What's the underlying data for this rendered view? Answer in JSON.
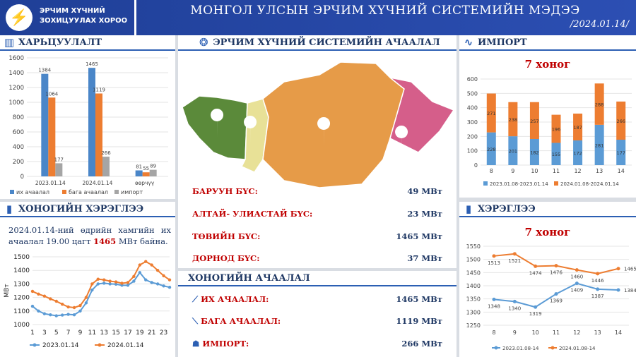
{
  "header": {
    "org_line1": "ЭРЧИМ ХҮЧНИЙ",
    "org_line2": "ЗОХИЦУУЛАХ ХОРОО",
    "title": "МОНГОЛ УЛСЫН ЭРЧИМ ХҮЧНИЙ СИСТЕМИЙН МЭДЭЭ",
    "date": "/2024.01.14/"
  },
  "compare": {
    "title": "ХАРЬЦУУЛАЛТ",
    "chart_data": {
      "type": "bar",
      "categories": [
        "2023.01.14",
        "2024.01.14",
        "өөрчүү"
      ],
      "series": [
        {
          "name": "их ачаалал",
          "color": "#4a86c8",
          "values": [
            1384,
            1465,
            81
          ]
        },
        {
          "name": "бага ачаалал",
          "color": "#ed7d31",
          "values": [
            1064,
            1119,
            55
          ]
        },
        {
          "name": "импорт",
          "color": "#a5a5a5",
          "values": [
            177,
            266,
            89
          ]
        }
      ],
      "ylim": [
        0,
        1600
      ],
      "yticks": [
        0,
        200,
        400,
        600,
        800,
        1000,
        1200,
        1400,
        1600
      ]
    }
  },
  "daily": {
    "title": "ХОНОГИЙН ХЭРЭГЛЭЭ",
    "text_before": "2024.01.14-ний өдрийн хамгийн их ачаалал 19.00 цагт ",
    "peak": "1465",
    "text_after": " МВт байна.",
    "chart_data": {
      "type": "line",
      "ylabel": "МВт",
      "x": [
        1,
        2,
        3,
        4,
        5,
        6,
        7,
        8,
        9,
        10,
        11,
        12,
        13,
        14,
        15,
        16,
        17,
        18,
        19,
        20,
        21,
        22,
        23,
        24
      ],
      "xticks": [
        1,
        3,
        5,
        7,
        9,
        11,
        13,
        15,
        17,
        19,
        21,
        23
      ],
      "ylim": [
        1000,
        1500
      ],
      "yticks": [
        1000,
        1100,
        1200,
        1300,
        1400,
        1500
      ],
      "series": [
        {
          "name": "2023.01.14",
          "color": "#5b9bd5",
          "values": [
            1135,
            1100,
            1080,
            1072,
            1065,
            1070,
            1075,
            1072,
            1100,
            1160,
            1255,
            1300,
            1305,
            1300,
            1298,
            1290,
            1290,
            1320,
            1384,
            1330,
            1310,
            1300,
            1285,
            1275
          ]
        },
        {
          "name": "2024.01.14",
          "color": "#ed7d31",
          "values": [
            1245,
            1225,
            1210,
            1190,
            1172,
            1150,
            1130,
            1125,
            1140,
            1200,
            1300,
            1335,
            1330,
            1320,
            1315,
            1305,
            1310,
            1355,
            1440,
            1465,
            1440,
            1400,
            1360,
            1330
          ]
        }
      ]
    }
  },
  "system": {
    "title": "ЭРЧИМ ХҮЧНИЙ СИСТЕМИЙН АЧААЛАЛ",
    "regions": [
      {
        "name": "БАРУУН БҮС:",
        "value": "49 МВт"
      },
      {
        "name": "АЛТАЙ- УЛИАСТАЙ БҮС:",
        "value": "23 МВт"
      },
      {
        "name": "ТӨВИЙН БҮС:",
        "value": "1465  МВт"
      },
      {
        "name": "ДОРНОД БҮС:",
        "value": "37 МВт"
      }
    ]
  },
  "load": {
    "title": "ХОНОГИЙН АЧААЛАЛ",
    "items": [
      {
        "name": "ИХ АЧААЛАЛ:",
        "value": "1465 МВт"
      },
      {
        "name": "БАГА АЧААЛАЛ:",
        "value": "1119 МВт"
      },
      {
        "name": "ИМПОРТ:",
        "value": "266 МВт"
      }
    ]
  },
  "import": {
    "title": "ИМПОРТ",
    "subtitle": "7 хоног",
    "chart_data": {
      "type": "bar",
      "stacked": true,
      "categories": [
        "8",
        "9",
        "10",
        "11",
        "12",
        "13",
        "14"
      ],
      "ylim": [
        0,
        600
      ],
      "yticks": [
        0,
        100,
        200,
        300,
        400,
        500,
        600
      ],
      "series": [
        {
          "name": "2023.01.08-2023.01.14",
          "color": "#5b9bd5",
          "values": [
            228,
            201,
            182,
            155,
            172,
            281,
            177
          ]
        },
        {
          "name": "2024.01.08-2024.01.14",
          "color": "#ed7d31",
          "values": [
            271,
            238,
            257,
            196,
            187,
            288,
            266
          ]
        }
      ]
    }
  },
  "consumption": {
    "title": "ХЭРЭГЛЭЭ",
    "subtitle": "7 хоног",
    "chart_data": {
      "type": "line",
      "categories": [
        "8",
        "9",
        "10",
        "11",
        "12",
        "13",
        "14"
      ],
      "ylim": [
        1250,
        1550
      ],
      "yticks": [
        1250,
        1300,
        1350,
        1400,
        1450,
        1500,
        1550
      ],
      "series": [
        {
          "name": "2023.01.08-14",
          "color": "#5b9bd5",
          "values": [
            1348,
            1340,
            1319,
            1369,
            1409,
            1387,
            1384
          ]
        },
        {
          "name": "2024.01.08-14",
          "color": "#ed7d31",
          "values": [
            1513,
            1521,
            1474,
            1476,
            1460,
            1446,
            1465
          ]
        }
      ]
    }
  }
}
